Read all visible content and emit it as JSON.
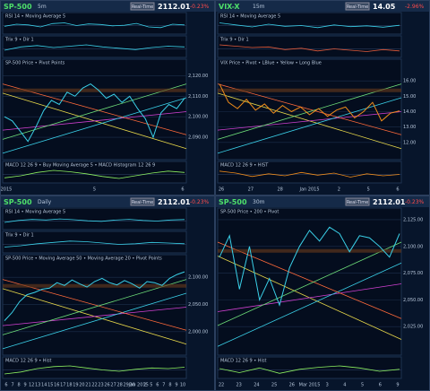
{
  "panels": [
    {
      "symbol": "SP-500",
      "interval": "5m",
      "button": "Real-Time",
      "price": "2112.01",
      "change": "-0.23%",
      "x_labels": [
        "2015",
        "5",
        "6"
      ],
      "sub_panels": [
        {
          "label": "RSI 14 • Moving Average 5",
          "ylim": [
            0,
            100
          ],
          "color": "#3ad0e8",
          "values": [
            45,
            60,
            55,
            40,
            65,
            70,
            50,
            62,
            58,
            48,
            52,
            66,
            40,
            35,
            60,
            55
          ]
        },
        {
          "label": "Trix 9 • Dir 1",
          "ylim": [
            -1,
            1
          ],
          "color": "#3ad0e8",
          "values": [
            -0.2,
            0.3,
            0.5,
            0.2,
            0.4,
            0.6,
            0.3,
            0.1,
            -0.1,
            0.2,
            0.4,
            0.3
          ]
        },
        {
          "label": "SP-500 Price • Pivot Points",
          "main": true,
          "ylim": [
            2080,
            2125
          ],
          "color": "#3ad0e8",
          "yticks": [
            {
              "value": 2090,
              "label": "2,090.00"
            },
            {
              "value": 2100,
              "label": "2,100.00"
            },
            {
              "value": 2110,
              "label": "2,110.00"
            },
            {
              "value": 2120,
              "label": "2,120.00"
            }
          ],
          "values": [
            2100,
            2098,
            2093,
            2088,
            2095,
            2103,
            2108,
            2106,
            2112,
            2110,
            2114,
            2116,
            2113,
            2109,
            2111,
            2107,
            2110,
            2104,
            2099,
            2090,
            2102,
            2106,
            2104,
            2109
          ]
        },
        {
          "label": "MACD 12 26 9 • Buy Moving Average 5 • MACD Histogram 12 26 9",
          "ylim": [
            -1,
            1
          ],
          "color": "#8cf060",
          "values": [
            -0.5,
            -0.2,
            0.3,
            0.6,
            0.4,
            0.1,
            -0.3,
            -0.6,
            -0.2,
            0.2,
            0.5,
            0.3
          ]
        }
      ]
    },
    {
      "symbol": "VIX-X",
      "interval": "15m",
      "button": "Real-Time",
      "price": "14.05",
      "change": "-2.96%",
      "x_labels": [
        "26",
        "27",
        "28",
        "Jan 2015",
        "2",
        "5",
        "6"
      ],
      "sub_panels": [
        {
          "label": "RSI 14 • Moving Average 5",
          "ylim": [
            0,
            100
          ],
          "color": "#3ad0e8",
          "values": [
            70,
            55,
            40,
            60,
            45,
            50,
            35,
            55,
            42,
            48,
            38,
            52
          ]
        },
        {
          "label": "Trix 9 • Dir 1",
          "ylim": [
            -1,
            1
          ],
          "color": "#e05a3a",
          "values": [
            0.6,
            0.4,
            0.2,
            0.3,
            -0.1,
            0.1,
            -0.3,
            0.0,
            -0.2,
            -0.4,
            -0.1,
            -0.3
          ]
        },
        {
          "label": "VIX Price • Pivot • LBlue • Yellow • Long Blue",
          "main": true,
          "ylim": [
            11,
            17
          ],
          "color": "#f08c1a",
          "yticks": [
            {
              "value": 12,
              "label": "12.00"
            },
            {
              "value": 13,
              "label": "13.00"
            },
            {
              "value": 14,
              "label": "14.00"
            },
            {
              "value": 15,
              "label": "15.00"
            },
            {
              "value": 16,
              "label": "16.00"
            }
          ],
          "values": [
            15.8,
            14.6,
            14.2,
            14.8,
            14.1,
            14.5,
            13.9,
            14.4,
            14.0,
            14.3,
            13.8,
            14.2,
            13.7,
            14.1,
            14.3,
            13.6,
            14.0,
            14.6,
            13.4,
            13.9,
            14.05
          ]
        },
        {
          "label": "MACD 12 26 9 • HIST",
          "ylim": [
            -1,
            1
          ],
          "color": "#f08c1a",
          "values": [
            0.5,
            0.2,
            -0.3,
            0.1,
            -0.2,
            0.3,
            -0.1,
            0.2,
            -0.4,
            0.1,
            -0.2,
            0.0
          ]
        }
      ]
    },
    {
      "symbol": "SP-500",
      "interval": "Daily",
      "button": "Real-Time",
      "price": "2112.01",
      "change": "-0.23%",
      "x_labels": [
        "6",
        "7",
        "8",
        "9",
        "12",
        "13",
        "14",
        "15",
        "16",
        "17",
        "18",
        "19",
        "20",
        "21",
        "22",
        "23",
        "26",
        "27",
        "28",
        "29",
        "30",
        "Jan 2015",
        "2",
        "5",
        "6",
        "7",
        "8",
        "9",
        "10"
      ],
      "sub_panels": [
        {
          "label": "RSI 14 • Moving Average 5",
          "ylim": [
            0,
            100
          ],
          "color": "#3ad0e8",
          "values": [
            40,
            55,
            62,
            58,
            66,
            60,
            52,
            48,
            57,
            63,
            55,
            50,
            58,
            61
          ]
        },
        {
          "label": "Trix 9 • Dir 1",
          "ylim": [
            -1,
            1
          ],
          "color": "#3ad0e8",
          "values": [
            -0.4,
            -0.2,
            0.1,
            0.3,
            0.5,
            0.4,
            0.2,
            0.0,
            0.1,
            0.3,
            0.2,
            0.1
          ]
        },
        {
          "label": "SP-500 Price • Moving Average 50 • Moving Average 20 • Pivot Points",
          "main": true,
          "ylim": [
            1960,
            2130
          ],
          "color": "#3ad0e8",
          "yticks": [
            {
              "value": 2000,
              "label": "2,000.00"
            },
            {
              "value": 2050,
              "label": "2,050.00"
            },
            {
              "value": 2100,
              "label": "2,100.00"
            }
          ],
          "values": [
            2020,
            2035,
            2055,
            2068,
            2072,
            2078,
            2080,
            2090,
            2085,
            2095,
            2088,
            2082,
            2092,
            2098,
            2090,
            2086,
            2094,
            2088,
            2080,
            2092,
            2090,
            2085,
            2098,
            2105,
            2110
          ]
        },
        {
          "label": "MACD 12 26 9 • Hist",
          "ylim": [
            -1,
            1
          ],
          "color": "#8cf060",
          "values": [
            -0.6,
            -0.3,
            0.2,
            0.5,
            0.6,
            0.3,
            0.0,
            -0.2,
            0.1,
            0.3,
            0.2,
            0.4
          ]
        }
      ]
    },
    {
      "symbol": "SP-500",
      "interval": "30m",
      "button": "Real-Time",
      "price": "2112.01",
      "change": "-0.23%",
      "x_labels": [
        "22",
        "23",
        "24",
        "25",
        "26",
        "Mar 2015",
        "3",
        "4",
        "5",
        "6",
        "9"
      ],
      "sub_panels": [
        {
          "label": "SP-500 Price • 200 • Pivot",
          "main": true,
          "ylim": [
            2000,
            2130
          ],
          "color": "#3ad0e8",
          "yticks": [
            {
              "value": 2025,
              "label": "2,025.00"
            },
            {
              "value": 2050,
              "label": "2,050.00"
            },
            {
              "value": 2075,
              "label": "2,075.00"
            },
            {
              "value": 2100,
              "label": "2,100.00"
            },
            {
              "value": 2125,
              "label": "2,125.00"
            }
          ],
          "values": [
            2090,
            2110,
            2060,
            2100,
            2050,
            2070,
            2045,
            2080,
            2100,
            2115,
            2105,
            2118,
            2112,
            2095,
            2110,
            2108,
            2100,
            2090,
            2112
          ]
        },
        {
          "label": "MACD 12 26 9 • Hist",
          "ylim": [
            -1,
            1
          ],
          "color": "#8cf060",
          "values": [
            0.2,
            -0.4,
            0.3,
            -0.5,
            0.1,
            0.4,
            0.6,
            0.3,
            -0.2,
            0.1
          ]
        }
      ]
    }
  ]
}
